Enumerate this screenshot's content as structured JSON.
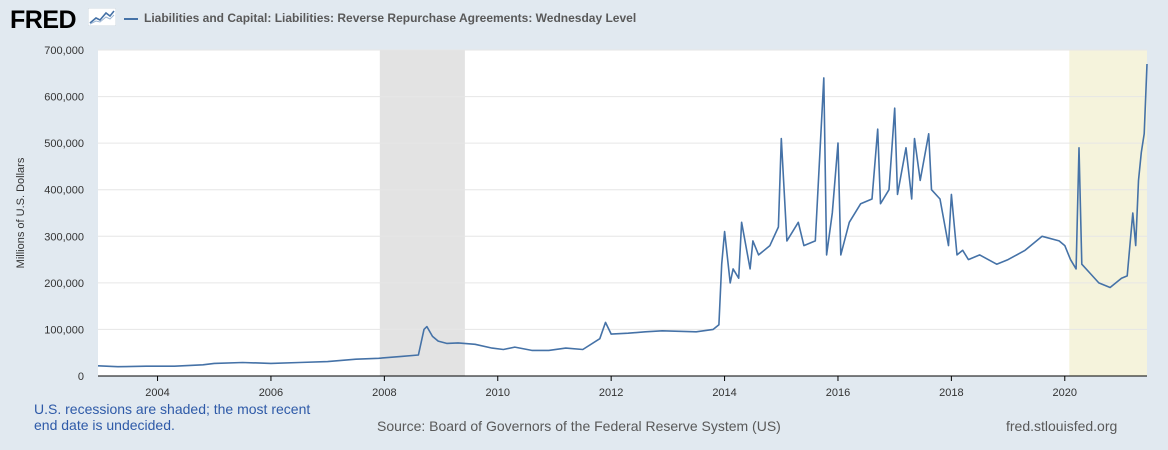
{
  "header": {
    "logo_text": "FRED",
    "legend_label": "Liabilities and Capital: Liabilities: Reverse Repurchase Agreements: Wednesday Level"
  },
  "footer": {
    "note": "U.S. recessions are shaded; the most recent end date is undecided.",
    "source": "Source: Board of Governors of the Federal Reserve System (US)",
    "site": "fred.stlouisfed.org"
  },
  "colors": {
    "series": "#4572a7",
    "recession": "#e3e3e3",
    "recent_recession": "#f5f3dc",
    "plot_bg": "#ffffff",
    "grid": "#e6e6e6"
  },
  "chart_data": {
    "type": "line",
    "title": "Liabilities and Capital: Liabilities: Reverse Repurchase Agreements: Wednesday Level",
    "xlabel": "",
    "ylabel": "Millions of U.S. Dollars",
    "xlim": [
      2002.95,
      2021.45
    ],
    "ylim": [
      0,
      700000
    ],
    "x_ticks": [
      2004,
      2006,
      2008,
      2010,
      2012,
      2014,
      2016,
      2018,
      2020
    ],
    "x_tick_labels": [
      "2004",
      "2006",
      "2008",
      "2010",
      "2012",
      "2014",
      "2016",
      "2018",
      "2020"
    ],
    "y_ticks": [
      0,
      100000,
      200000,
      300000,
      400000,
      500000,
      600000,
      700000
    ],
    "y_tick_labels": [
      "0",
      "100,000",
      "200,000",
      "300,000",
      "400,000",
      "500,000",
      "600,000",
      "700,000"
    ],
    "grid": true,
    "recessions": [
      {
        "start": 2007.92,
        "end": 2009.42
      },
      {
        "start": 2020.08,
        "end": 2021.45,
        "undecided_end": true
      }
    ],
    "series": [
      {
        "name": "Liabilities and Capital: Liabilities: Reverse Repurchase Agreements: Wednesday Level",
        "x": [
          2002.95,
          2003.3,
          2003.8,
          2004.3,
          2004.8,
          2005.0,
          2005.5,
          2006.0,
          2006.5,
          2007.0,
          2007.5,
          2007.9,
          2008.3,
          2008.6,
          2008.7,
          2008.75,
          2008.85,
          2008.95,
          2009.1,
          2009.3,
          2009.6,
          2009.9,
          2010.1,
          2010.3,
          2010.6,
          2010.9,
          2011.2,
          2011.5,
          2011.8,
          2011.9,
          2012.0,
          2012.3,
          2012.6,
          2012.9,
          2013.2,
          2013.5,
          2013.8,
          2013.9,
          2013.95,
          2014.0,
          2014.1,
          2014.15,
          2014.25,
          2014.3,
          2014.45,
          2014.5,
          2014.6,
          2014.8,
          2014.95,
          2015.0,
          2015.1,
          2015.3,
          2015.4,
          2015.6,
          2015.75,
          2015.8,
          2015.9,
          2016.0,
          2016.05,
          2016.2,
          2016.4,
          2016.6,
          2016.7,
          2016.75,
          2016.9,
          2017.0,
          2017.05,
          2017.2,
          2017.3,
          2017.35,
          2017.45,
          2017.6,
          2017.65,
          2017.8,
          2017.95,
          2018.0,
          2018.1,
          2018.2,
          2018.3,
          2018.5,
          2018.8,
          2019.0,
          2019.3,
          2019.6,
          2019.9,
          2020.0,
          2020.1,
          2020.2,
          2020.25,
          2020.3,
          2020.45,
          2020.6,
          2020.8,
          2021.0,
          2021.1,
          2021.2,
          2021.25,
          2021.3,
          2021.35,
          2021.4,
          2021.45
        ],
        "values": [
          22000,
          20000,
          21000,
          21000,
          24000,
          27000,
          29000,
          27000,
          29000,
          31000,
          36000,
          38000,
          42000,
          45000,
          100000,
          106000,
          85000,
          75000,
          70000,
          71000,
          68000,
          60000,
          57000,
          62000,
          55000,
          55000,
          60000,
          57000,
          80000,
          115000,
          90000,
          92000,
          95000,
          97000,
          96000,
          95000,
          100000,
          110000,
          240000,
          310000,
          200000,
          230000,
          210000,
          330000,
          230000,
          290000,
          260000,
          280000,
          320000,
          510000,
          290000,
          330000,
          280000,
          290000,
          640000,
          260000,
          350000,
          500000,
          260000,
          330000,
          370000,
          380000,
          530000,
          370000,
          400000,
          575000,
          390000,
          490000,
          380000,
          510000,
          420000,
          520000,
          400000,
          380000,
          280000,
          390000,
          260000,
          270000,
          250000,
          260000,
          240000,
          250000,
          270000,
          300000,
          290000,
          280000,
          250000,
          230000,
          490000,
          240000,
          220000,
          200000,
          190000,
          210000,
          215000,
          350000,
          280000,
          420000,
          480000,
          520000,
          670000
        ]
      }
    ]
  }
}
